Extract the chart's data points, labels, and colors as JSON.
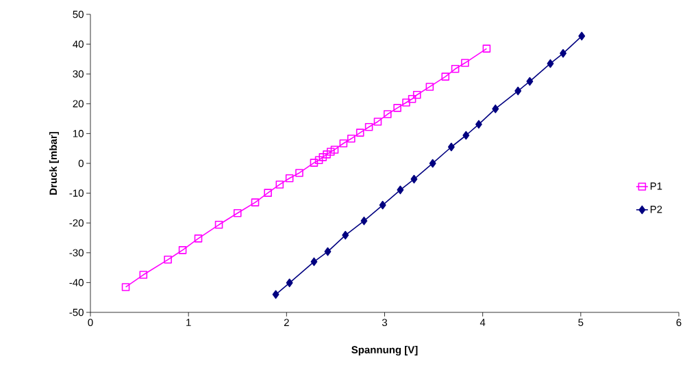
{
  "chart_data": {
    "type": "line",
    "xlabel": "Spannung [V]",
    "ylabel": "Druck [mbar]",
    "xlim": [
      0,
      6
    ],
    "ylim": [
      -50,
      50
    ],
    "xticks": [
      0,
      1,
      2,
      3,
      4,
      5,
      6
    ],
    "yticks": [
      -50,
      -40,
      -30,
      -20,
      -10,
      0,
      10,
      20,
      30,
      40,
      50
    ],
    "legend": "right",
    "series": [
      {
        "name": "P1",
        "color": "#ff00ff",
        "marker": "square",
        "x": [
          0.36,
          0.54,
          0.79,
          0.94,
          1.1,
          1.31,
          1.5,
          1.68,
          1.81,
          1.93,
          2.03,
          2.13,
          2.28,
          2.33,
          2.37,
          2.41,
          2.45,
          2.49,
          2.58,
          2.66,
          2.75,
          2.84,
          2.93,
          3.03,
          3.13,
          3.22,
          3.28,
          3.33,
          3.46,
          3.62,
          3.72,
          3.82,
          4.04
        ],
        "values": [
          -41.5,
          -37.4,
          -32.3,
          -29.1,
          -25.2,
          -20.6,
          -16.7,
          -13.1,
          -9.9,
          -7.1,
          -5.0,
          -3.2,
          0.2,
          1.1,
          2.1,
          3.0,
          3.9,
          4.6,
          6.7,
          8.3,
          10.3,
          12.2,
          14.0,
          16.5,
          18.6,
          20.4,
          21.6,
          23.0,
          25.7,
          29.1,
          31.7,
          33.7,
          38.5
        ]
      },
      {
        "name": "P2",
        "color": "#000080",
        "marker": "diamond",
        "x": [
          1.89,
          2.03,
          2.28,
          2.42,
          2.6,
          2.79,
          2.98,
          3.16,
          3.3,
          3.49,
          3.68,
          3.83,
          3.96,
          4.13,
          4.36,
          4.48,
          4.69,
          4.82,
          5.01
        ],
        "values": [
          -44.0,
          -40.1,
          -33.0,
          -29.6,
          -24.1,
          -19.3,
          -14.0,
          -8.9,
          -5.3,
          0.0,
          5.5,
          9.4,
          13.1,
          18.3,
          24.3,
          27.5,
          33.5,
          36.9,
          42.7
        ]
      }
    ]
  }
}
